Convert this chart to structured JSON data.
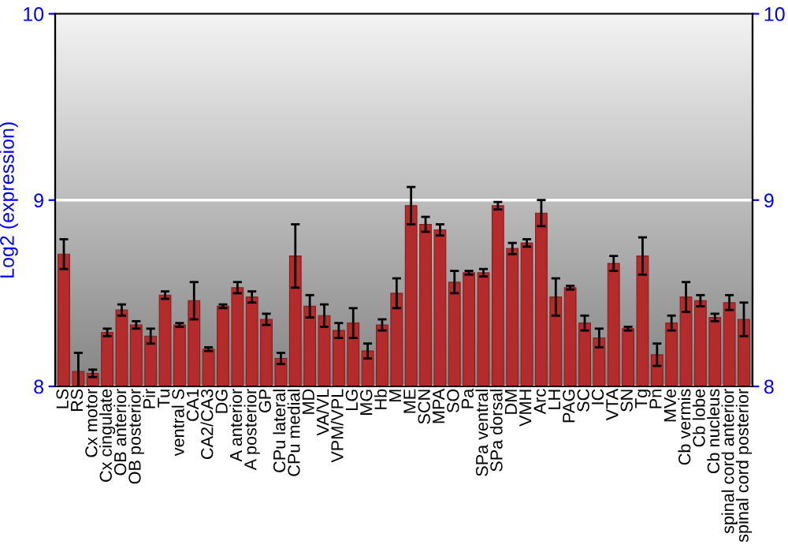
{
  "chart_data": {
    "type": "bar",
    "ylabel": "Log2 (expression)",
    "categories": [
      "LS",
      "RS",
      "Cx motor",
      "Cx cingulate",
      "OB anterior",
      "OB posterior",
      "Pir",
      "Tu",
      "ventral S",
      "CA1",
      "CA2/CA3",
      "DG",
      "A anterior",
      "A posterior",
      "GP",
      "CPu lateral",
      "CPu medial",
      "MD",
      "VA/VL",
      "VPM/VPL",
      "LG",
      "MG",
      "Hb",
      "M",
      "ME",
      "SCN",
      "MPA",
      "SO",
      "Pa",
      "SPa ventral",
      "SPa dorsal",
      "DM",
      "VMH",
      "Arc",
      "LH",
      "PAG",
      "SC",
      "IC",
      "VTA",
      "SN",
      "Tg",
      "Pn",
      "MVe",
      "Cb vermis",
      "Cb lobe",
      "Cb nucleus",
      "spinal cord anterior",
      "spinal cord posterior"
    ],
    "values": [
      8.71,
      8.08,
      8.07,
      8.29,
      8.41,
      8.33,
      8.27,
      8.49,
      8.33,
      8.46,
      8.2,
      8.43,
      8.53,
      8.48,
      8.36,
      8.15,
      8.7,
      8.43,
      8.38,
      8.3,
      8.34,
      8.19,
      8.33,
      8.5,
      8.97,
      8.87,
      8.84,
      8.56,
      8.61,
      8.61,
      8.97,
      8.74,
      8.77,
      8.93,
      8.48,
      8.53,
      8.34,
      8.26,
      8.66,
      8.31,
      8.7,
      8.17,
      8.34,
      8.48,
      8.46,
      8.37,
      8.45,
      8.36
    ],
    "errors": [
      0.08,
      0.1,
      0.02,
      0.02,
      0.03,
      0.02,
      0.04,
      0.02,
      0.01,
      0.1,
      0.01,
      0.01,
      0.03,
      0.03,
      0.03,
      0.03,
      0.17,
      0.06,
      0.06,
      0.04,
      0.08,
      0.04,
      0.03,
      0.08,
      0.1,
      0.04,
      0.03,
      0.06,
      0.01,
      0.02,
      0.02,
      0.03,
      0.02,
      0.07,
      0.1,
      0.01,
      0.04,
      0.05,
      0.04,
      0.01,
      0.1,
      0.06,
      0.04,
      0.08,
      0.03,
      0.02,
      0.04,
      0.09
    ],
    "color": "#b32b2b",
    "ylim": [
      8,
      10
    ],
    "yticks": [
      8,
      9,
      10
    ],
    "y2lim": [
      8,
      10
    ],
    "y2ticks": [
      8,
      9,
      10
    ],
    "grid": "y",
    "legend": false
  }
}
